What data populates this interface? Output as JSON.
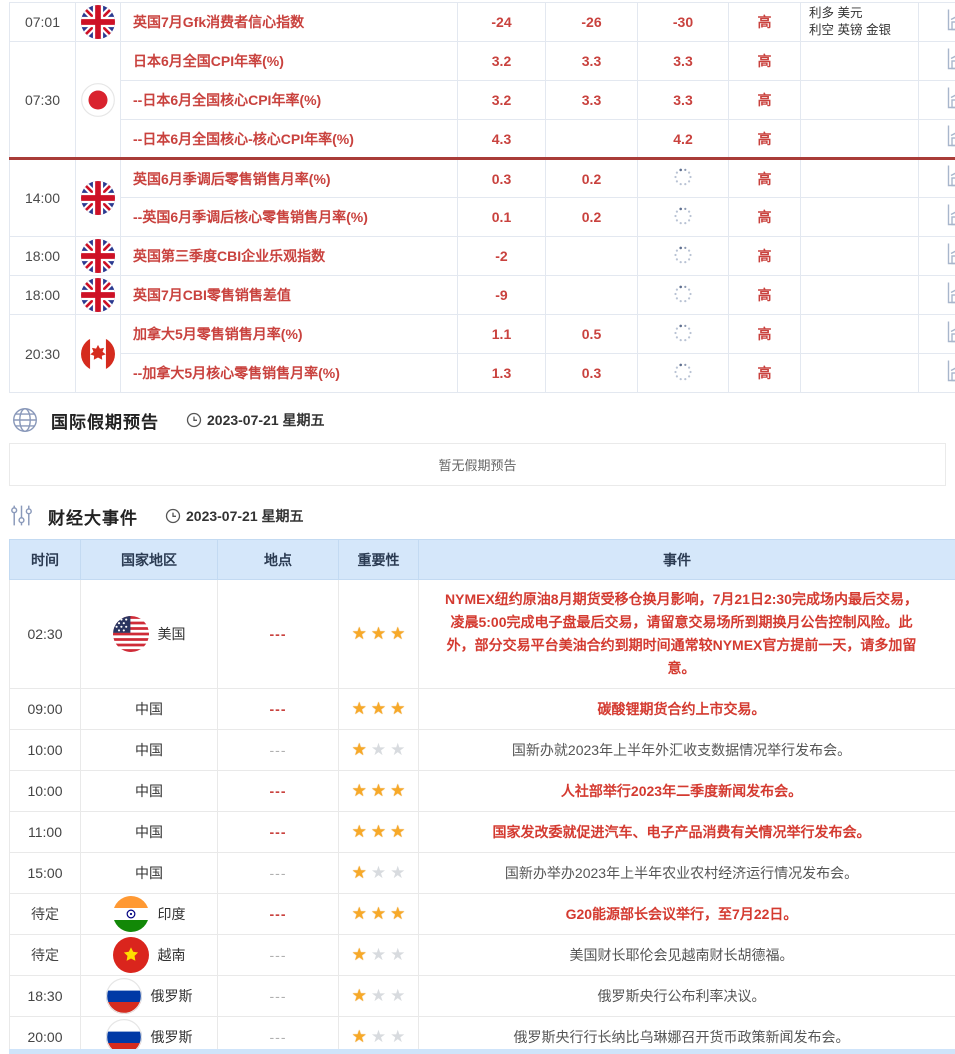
{
  "colors": {
    "indicator_red": "#c9423e",
    "event_red": "#d43a30",
    "divider_red": "#a93c38",
    "table_header_bg": "#d5e7fa",
    "star_gold": "#f7a928",
    "star_empty": "#d8dbdf",
    "bottom_bar_blue": "#cfe4fa"
  },
  "econ_table": {
    "rows": [
      {
        "time": "07:01",
        "time_span": 1,
        "flag": "uk",
        "name": "英国7月Gfk消费者信心指数",
        "v1": "-24",
        "v2": "-26",
        "v3": "-30",
        "importance": "高",
        "effect_lines": [
          "利多  美元",
          "利空  英镑 金银"
        ],
        "divider": false
      },
      {
        "time": "07:30",
        "time_span": 3,
        "flag": "jp",
        "name": "日本6月全国CPI年率(%)",
        "v1": "3.2",
        "v2": "3.3",
        "v3": "3.3",
        "importance": "高",
        "effect_lines": [],
        "divider": false
      },
      {
        "name": "--日本6月全国核心CPI年率(%)",
        "v1": "3.2",
        "v2": "3.3",
        "v3": "3.3",
        "importance": "高",
        "effect_lines": [],
        "divider": false
      },
      {
        "name": "--日本6月全国核心-核心CPI年率(%)",
        "v1": "4.3",
        "v2": "",
        "v3": "4.2",
        "importance": "高",
        "effect_lines": [],
        "divider": false
      },
      {
        "time": "14:00",
        "time_span": 2,
        "flag": "uk",
        "name": "英国6月季调后零售销售月率(%)",
        "v1": "0.3",
        "v2": "0.2",
        "v3": "pending",
        "importance": "高",
        "effect_lines": [],
        "divider": true
      },
      {
        "name": "--英国6月季调后核心零售销售月率(%)",
        "v1": "0.1",
        "v2": "0.2",
        "v3": "pending",
        "importance": "高",
        "effect_lines": [],
        "divider": false
      },
      {
        "time": "18:00",
        "time_span": 1,
        "flag": "uk",
        "name": "英国第三季度CBI企业乐观指数",
        "v1": "-2",
        "v2": "",
        "v3": "pending",
        "importance": "高",
        "effect_lines": [],
        "divider": false
      },
      {
        "time": "18:00",
        "time_span": 1,
        "flag": "uk",
        "name": "英国7月CBI零售销售差值",
        "v1": "-9",
        "v2": "",
        "v3": "pending",
        "importance": "高",
        "effect_lines": [],
        "divider": false
      },
      {
        "time": "20:30",
        "time_span": 2,
        "flag": "ca",
        "name": "加拿大5月零售销售月率(%)",
        "v1": "1.1",
        "v2": "0.5",
        "v3": "pending",
        "importance": "高",
        "effect_lines": [],
        "divider": false
      },
      {
        "name": "--加拿大5月核心零售销售月率(%)",
        "v1": "1.3",
        "v2": "0.3",
        "v3": "pending",
        "importance": "高",
        "effect_lines": [],
        "divider": false
      }
    ]
  },
  "holiday_section": {
    "title": "国际假期预告",
    "date": "2023-07-21 星期五",
    "empty_text": "暂无假期预告"
  },
  "events_section": {
    "title": "财经大事件",
    "date": "2023-07-21 星期五",
    "columns": [
      "时间",
      "国家地区",
      "地点",
      "重要性",
      "事件"
    ],
    "rows": [
      {
        "time": "02:30",
        "flag": "us",
        "country": "美国",
        "location": "---",
        "stars": 3,
        "highlight": true,
        "event": "NYMEX纽约原油8月期货受移仓换月影响，7月21日2:30完成场内最后交易，凌晨5:00完成电子盘最后交易，请留意交易场所到期换月公告控制风险。此外，部分交易平台美油合约到期时间通常较NYMEX官方提前一天，请多加留意。"
      },
      {
        "time": "09:00",
        "flag": null,
        "country": "中国",
        "location": "---",
        "stars": 3,
        "highlight": true,
        "event": "碳酸锂期货合约上市交易。"
      },
      {
        "time": "10:00",
        "flag": null,
        "country": "中国",
        "location": "---",
        "stars": 1,
        "highlight": false,
        "event": "国新办就2023年上半年外汇收支数据情况举行发布会。"
      },
      {
        "time": "10:00",
        "flag": null,
        "country": "中国",
        "location": "---",
        "stars": 3,
        "highlight": true,
        "event": "人社部举行2023年二季度新闻发布会。"
      },
      {
        "time": "11:00",
        "flag": null,
        "country": "中国",
        "location": "---",
        "stars": 3,
        "highlight": true,
        "event": "国家发改委就促进汽车、电子产品消费有关情况举行发布会。"
      },
      {
        "time": "15:00",
        "flag": null,
        "country": "中国",
        "location": "---",
        "stars": 1,
        "highlight": false,
        "event": "国新办举办2023年上半年农业农村经济运行情况发布会。"
      },
      {
        "time": "待定",
        "flag": "in",
        "country": "印度",
        "location": "---",
        "stars": 3,
        "highlight": true,
        "event": "G20能源部长会议举行，至7月22日。"
      },
      {
        "time": "待定",
        "flag": "vn",
        "country": "越南",
        "location": "---",
        "stars": 1,
        "highlight": false,
        "event": "美国财长耶伦会见越南财长胡德福。"
      },
      {
        "time": "18:30",
        "flag": "ru",
        "country": "俄罗斯",
        "location": "---",
        "stars": 1,
        "highlight": false,
        "event": "俄罗斯央行公布利率决议。"
      },
      {
        "time": "20:00",
        "flag": "ru",
        "country": "俄罗斯",
        "location": "---",
        "stars": 1,
        "highlight": false,
        "event": "俄罗斯央行行长纳比乌琳娜召开货币政策新闻发布会。"
      }
    ]
  }
}
